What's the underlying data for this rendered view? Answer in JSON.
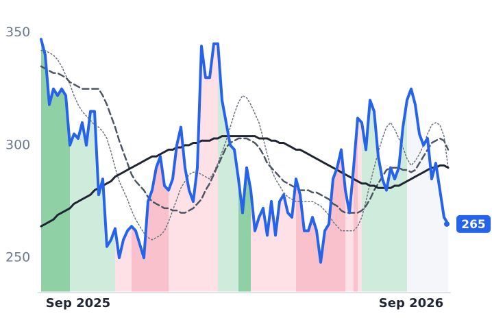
{
  "chart_data": {
    "type": "line",
    "categories": [
      null,
      null,
      null,
      null,
      null,
      null,
      null,
      null,
      null,
      "Sep 2025",
      null,
      null,
      null,
      null,
      null,
      null,
      null,
      null,
      null,
      null,
      null,
      null,
      null,
      null,
      null,
      null,
      null,
      null,
      null,
      null,
      null,
      null,
      null,
      null,
      null,
      null,
      null,
      null,
      null,
      null,
      null,
      null,
      null,
      null,
      null,
      null,
      null,
      null,
      null,
      null,
      null,
      null,
      null,
      null,
      null,
      null,
      null,
      null,
      null,
      null,
      null,
      null,
      null,
      null,
      null,
      null,
      null,
      null,
      null,
      null,
      null,
      null,
      null,
      null,
      null,
      null,
      null,
      null,
      null,
      null,
      null,
      null,
      null,
      null,
      null,
      null,
      null,
      null,
      null,
      null,
      "Sep 2026",
      null,
      null,
      null,
      null,
      null,
      null,
      null,
      null,
      null
    ],
    "series": [
      {
        "color": "#2563eb",
        "values": [
          347,
          340,
          318,
          325,
          322,
          325,
          322,
          300,
          305,
          303,
          310,
          300,
          315,
          315,
          278,
          285,
          255,
          258,
          263,
          250,
          258,
          262,
          264,
          262,
          256,
          250,
          275,
          280,
          290,
          295,
          282,
          280,
          285,
          300,
          308,
          290,
          280,
          275,
          290,
          344,
          330,
          330,
          345,
          345,
          320,
          310,
          300,
          298,
          285,
          270,
          290,
          280,
          262,
          268,
          272,
          260,
          275,
          260,
          275,
          278,
          270,
          268,
          285,
          278,
          262,
          262,
          268,
          262,
          248,
          262,
          265,
          285,
          290,
          298,
          280,
          270,
          290,
          312,
          310,
          298,
          320,
          315,
          295,
          285,
          280,
          290,
          285,
          290,
          308,
          320,
          325,
          318,
          305,
          300,
          303,
          285,
          292,
          280,
          268,
          265
        ]
      },
      {
        "color": "#1f2533",
        "values": [
          264,
          265,
          266,
          267,
          269,
          270,
          271,
          272,
          274,
          275,
          276,
          277,
          278,
          280,
          281,
          282,
          283,
          284,
          286,
          287,
          288,
          289,
          290,
          291,
          292,
          293,
          294,
          295,
          295,
          296,
          297,
          298,
          298,
          299,
          299,
          300,
          300,
          301,
          301,
          302,
          302,
          302,
          303,
          303,
          304,
          304,
          304,
          304,
          304,
          304,
          304,
          304,
          304,
          303,
          303,
          303,
          302,
          302,
          301,
          301,
          300,
          299,
          298,
          298,
          297,
          296,
          295,
          294,
          293,
          292,
          291,
          290,
          289,
          288,
          287,
          286,
          285,
          284,
          283,
          283,
          282,
          282,
          281,
          281,
          281,
          281,
          282,
          282,
          283,
          284,
          285,
          286,
          287,
          288,
          289,
          290,
          290,
          291,
          291,
          290
        ]
      },
      {
        "color": "#4b5563",
        "values": [
          335,
          334,
          333,
          332,
          332,
          331,
          330,
          328,
          327,
          326,
          325,
          325,
          325,
          325,
          325,
          322,
          318,
          313,
          308,
          302,
          297,
          292,
          287,
          284,
          282,
          280,
          277,
          275,
          274,
          273,
          272,
          272,
          271,
          271,
          270,
          270,
          271,
          272,
          274,
          276,
          280,
          283,
          287,
          291,
          295,
          299,
          301,
          302,
          303,
          303,
          303,
          302,
          301,
          299,
          296,
          292,
          290,
          288,
          286,
          284,
          283,
          282,
          281,
          280,
          280,
          280,
          279,
          279,
          278,
          277,
          276,
          274,
          273,
          271,
          270,
          270,
          270,
          270,
          271,
          273,
          276,
          280,
          283,
          286,
          289,
          290,
          290,
          290,
          289,
          289,
          288,
          289,
          292,
          295,
          298,
          301,
          302,
          303,
          302,
          298
        ]
      },
      {
        "color": "#6b7280",
        "values": [
          342,
          342,
          341,
          340,
          338,
          335,
          331,
          327,
          322,
          318,
          315,
          313,
          311,
          309,
          308,
          306,
          303,
          297,
          290,
          284,
          280,
          276,
          271,
          267,
          264,
          261,
          259,
          258,
          259,
          260,
          262,
          266,
          271,
          276,
          281,
          284,
          287,
          288,
          288,
          287,
          286,
          285,
          288,
          292,
          297,
          302,
          308,
          314,
          319,
          322,
          321,
          318,
          314,
          310,
          303,
          296,
          289,
          285,
          282,
          279,
          277,
          276,
          275,
          275,
          275,
          275,
          275,
          274,
          273,
          271,
          269,
          266,
          264,
          262,
          262,
          262,
          262,
          264,
          268,
          275,
          283,
          290,
          297,
          303,
          308,
          310,
          307,
          303,
          299,
          294,
          291,
          293,
          296,
          300,
          305,
          309,
          310,
          309,
          304,
          290
        ]
      }
    ],
    "shade": [
      "#8fd0a5",
      "#8fd0a5",
      "#8fd0a5",
      "#8fd0a5",
      "#8fd0a5",
      "#8fd0a5",
      "#8fd0a5",
      "#cfebdb",
      "#cfebdb",
      "#cfebdb",
      "#cfebdb",
      "#cfebdb",
      "#cfebdb",
      "#cfebdb",
      "#cfebdb",
      "#cfebdb",
      "#cfebdb",
      "#cfebdb",
      "#fde1e6",
      "#fde1e6",
      "#fde1e6",
      "#fde1e6",
      "#f9c1cb",
      "#f9c1cb",
      "#f9c1cb",
      "#f9c1cb",
      "#f9c1cb",
      "#f9c1cb",
      "#f9c1cb",
      "#f9c1cb",
      "#f9c1cb",
      "#fde1e6",
      "#fde1e6",
      "#fde1e6",
      "#fde1e6",
      "#fde1e6",
      "#fde1e6",
      "#fde1e6",
      "#fde1e6",
      "#fde1e6",
      "#fde1e6",
      "#fde1e6",
      "#fde1e6",
      "#cfebdb",
      "#cfebdb",
      "#cfebdb",
      "#cfebdb",
      "#cfebdb",
      "#8fd0a5",
      "#8fd0a5",
      "#8fd0a5",
      "#fde1e6",
      "#fde1e6",
      "#fde1e6",
      "#fde1e6",
      "#fde1e6",
      "#fde1e6",
      "#fde1e6",
      "#fde1e6",
      "#fde1e6",
      "#fde1e6",
      "#fde1e6",
      "#f9c1cb",
      "#f9c1cb",
      "#f9c1cb",
      "#f9c1cb",
      "#f9c1cb",
      "#f9c1cb",
      "#f9c1cb",
      "#f9c1cb",
      "#f9c1cb",
      "#f9c1cb",
      "#f9c1cb",
      "#f9c1cb",
      "#fde1e6",
      "#fde1e6",
      "#f9c1cb",
      "#fde1e6",
      "#cfebdb",
      "#cfebdb",
      "#cfebdb",
      "#cfebdb",
      "#cfebdb",
      "#cfebdb",
      "#cfebdb",
      "#cfebdb",
      "#cfebdb",
      "#cfebdb",
      "#cfebdb",
      "#f5f6f9",
      "#f5f6f9",
      "#f5f6f9",
      "#f5f6f9",
      "#f5f6f9",
      "#f5f6f9",
      "#f5f6f9",
      "#f5f6f9",
      "#f5f6f9",
      "#f5f6f9",
      "#f5f6f9"
    ],
    "ylim": [
      235,
      352
    ],
    "yticks": [
      250,
      300,
      350
    ],
    "grid": false
  }
}
